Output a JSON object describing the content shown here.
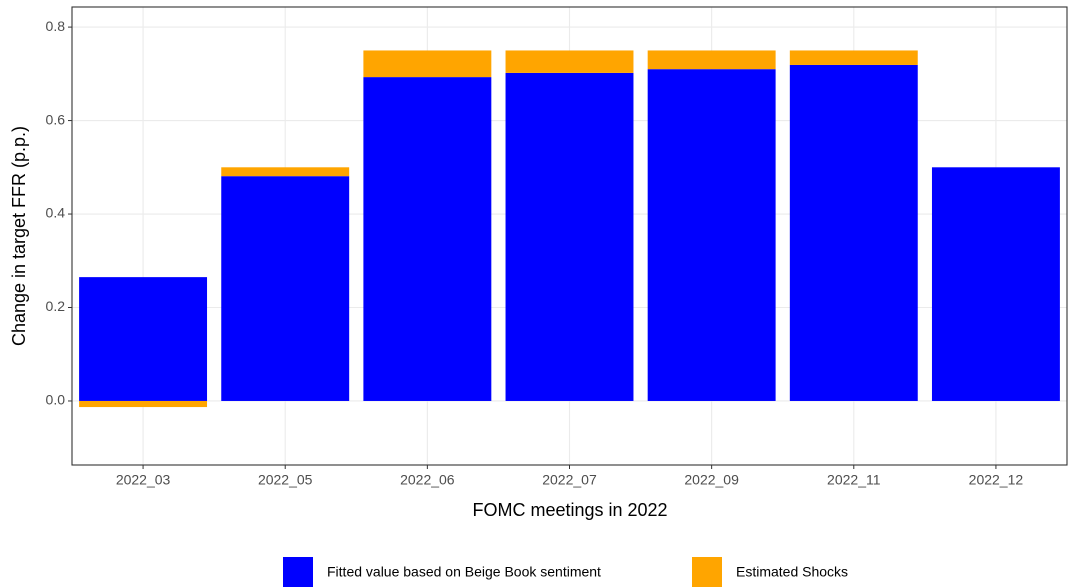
{
  "chart_data": {
    "type": "bar",
    "stacked": true,
    "categories": [
      "2022_03",
      "2022_05",
      "2022_06",
      "2022_07",
      "2022_09",
      "2022_11",
      "2022_12"
    ],
    "series": [
      {
        "name": "Fitted value based on Beige Book sentiment",
        "color": "#0000ff",
        "values": [
          0.265,
          0.481,
          0.693,
          0.702,
          0.71,
          0.719,
          0.5
        ]
      },
      {
        "name": "Estimated Shocks",
        "color": "#ffa500",
        "values": [
          -0.013,
          0.019,
          0.057,
          0.048,
          0.04,
          0.031,
          0
        ]
      }
    ],
    "x_label": "FOMC meetings in 2022",
    "y_label": "Change in target FFR (p.p.)",
    "ylim": [
      -0.137,
      0.843
    ],
    "yticks": [
      {
        "value": 0,
        "label": "0.0"
      },
      0.2,
      0.4,
      0.6,
      0.8
    ],
    "grid": true,
    "legend": "bottom"
  }
}
